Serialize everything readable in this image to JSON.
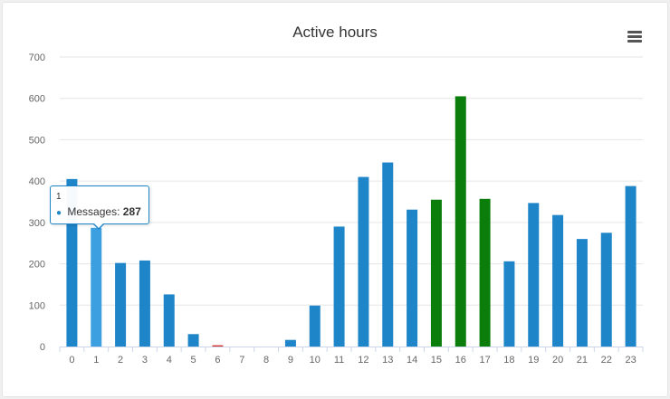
{
  "chart_data": {
    "type": "bar",
    "title": "Active hours",
    "xlabel": "",
    "ylabel": "",
    "ylim": [
      0,
      700
    ],
    "yticks": [
      0,
      100,
      200,
      300,
      400,
      500,
      600,
      700
    ],
    "grid": true,
    "legend": "none",
    "categories": [
      "0",
      "1",
      "2",
      "3",
      "4",
      "5",
      "6",
      "7",
      "8",
      "9",
      "10",
      "11",
      "12",
      "13",
      "14",
      "15",
      "16",
      "17",
      "18",
      "19",
      "20",
      "21",
      "22",
      "23"
    ],
    "series": [
      {
        "values": [
          405,
          287,
          202,
          208,
          126,
          30,
          3,
          0,
          0,
          16,
          99,
          290,
          410,
          445,
          331,
          355,
          605,
          357,
          206,
          347,
          318,
          260,
          275,
          388
        ],
        "colors": [
          "#1f85c9",
          "#3ca0e0",
          "#1f85c9",
          "#1f85c9",
          "#1f85c9",
          "#1f85c9",
          "#d0302a",
          "#1f85c9",
          "#1f85c9",
          "#1f85c9",
          "#1f85c9",
          "#1f85c9",
          "#1f85c9",
          "#1f85c9",
          "#1f85c9",
          "#0a7d0a",
          "#0a7d0a",
          "#0a7d0a",
          "#1f85c9",
          "#1f85c9",
          "#1f85c9",
          "#1f85c9",
          "#1f85c9",
          "#1f85c9"
        ]
      }
    ],
    "tooltip": {
      "category": "1",
      "series_name": "Messages",
      "value": "287"
    }
  },
  "colors": {
    "bar_default": "#1f85c9",
    "bar_hover": "#3ca0e0",
    "bar_peak": "#0a7d0a",
    "bar_low": "#d0302a",
    "gridline": "#e6e6e6",
    "axis_text": "#666666",
    "title_text": "#333333"
  },
  "toolbar": {
    "menu_icon": "hamburger-menu-icon"
  }
}
